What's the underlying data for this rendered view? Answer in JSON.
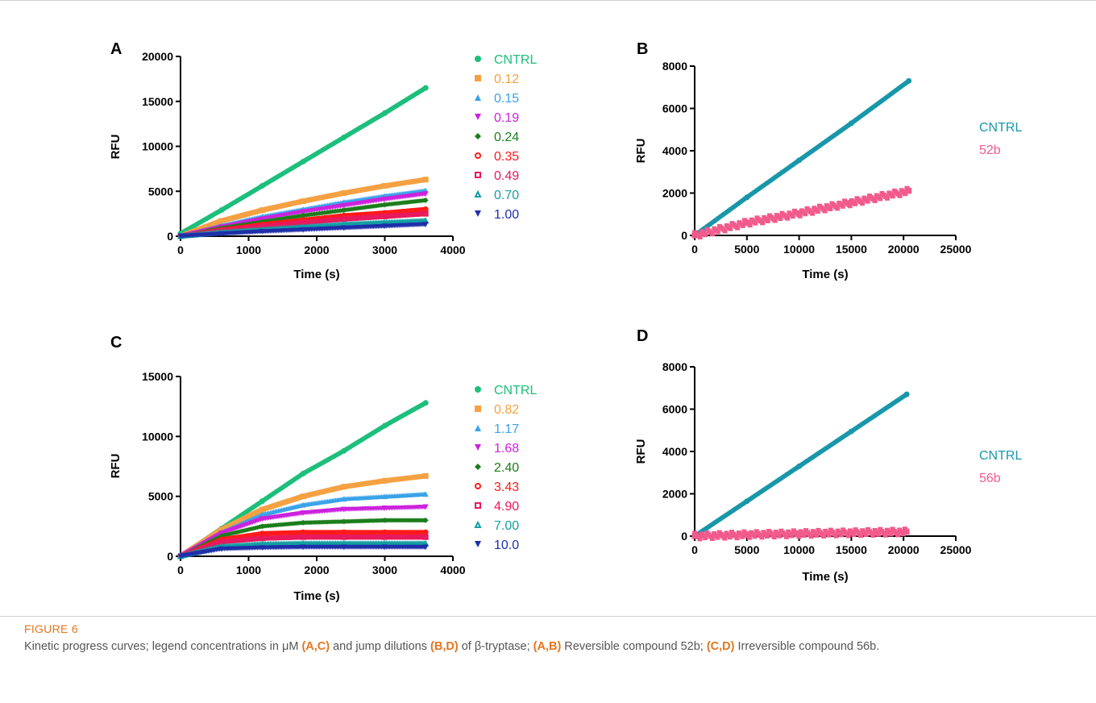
{
  "chart_data": [
    {
      "type": "scatter",
      "panel": "A",
      "xlabel": "Time (s)",
      "ylabel": "RFU",
      "xlim": [
        0,
        4000
      ],
      "ylim": [
        0,
        20000
      ],
      "xticks": [
        0,
        1000,
        2000,
        3000,
        4000
      ],
      "yticks": [
        0,
        5000,
        10000,
        15000,
        20000
      ],
      "legend_position": "right",
      "series": [
        {
          "name": "CNTRL",
          "color": "#1cbf7b",
          "marker": "circle",
          "x": [
            0,
            600,
            1200,
            1800,
            2400,
            3000,
            3600
          ],
          "y": [
            300,
            2900,
            5600,
            8300,
            11000,
            13700,
            16500
          ]
        },
        {
          "name": "0.12",
          "color": "#f5a142",
          "marker": "square",
          "x": [
            0,
            600,
            1200,
            1800,
            2400,
            3000,
            3600
          ],
          "y": [
            0,
            1700,
            2900,
            3900,
            4800,
            5600,
            6300
          ]
        },
        {
          "name": "0.15",
          "color": "#3aa3e8",
          "marker": "triangle-up",
          "x": [
            0,
            600,
            1200,
            1800,
            2400,
            3000,
            3600
          ],
          "y": [
            0,
            1200,
            2200,
            3000,
            3800,
            4500,
            5100
          ]
        },
        {
          "name": "0.19",
          "color": "#cc22dd",
          "marker": "triangle-down",
          "x": [
            0,
            600,
            1200,
            1800,
            2400,
            3000,
            3600
          ],
          "y": [
            0,
            1000,
            1900,
            2700,
            3400,
            4100,
            4700
          ]
        },
        {
          "name": "0.24",
          "color": "#1b7d1b",
          "marker": "diamond",
          "x": [
            0,
            600,
            1200,
            1800,
            2400,
            3000,
            3600
          ],
          "y": [
            0,
            900,
            1600,
            2300,
            2900,
            3500,
            4000
          ]
        },
        {
          "name": "0.35",
          "color": "#ff1a1a",
          "marker": "circle-open",
          "x": [
            0,
            600,
            1200,
            1800,
            2400,
            3000,
            3600
          ],
          "y": [
            0,
            700,
            1300,
            1800,
            2300,
            2600,
            3000
          ]
        },
        {
          "name": "0.49",
          "color": "#e8185c",
          "marker": "square-open",
          "x": [
            0,
            600,
            1200,
            1800,
            2400,
            3000,
            3600
          ],
          "y": [
            0,
            600,
            1100,
            1500,
            1900,
            2200,
            2500
          ]
        },
        {
          "name": "0.70",
          "color": "#149ea3",
          "marker": "triangle-open",
          "x": [
            0,
            600,
            1200,
            1800,
            2400,
            3000,
            3600
          ],
          "y": [
            0,
            400,
            700,
            1000,
            1300,
            1500,
            1700
          ]
        },
        {
          "name": "1.00",
          "color": "#1f2fa8",
          "marker": "triangle-down",
          "x": [
            0,
            600,
            1200,
            1800,
            2400,
            3000,
            3600
          ],
          "y": [
            0,
            250,
            500,
            700,
            900,
            1100,
            1300
          ]
        }
      ]
    },
    {
      "type": "scatter",
      "panel": "B",
      "xlabel": "Time (s)",
      "ylabel": "RFU",
      "xlim": [
        0,
        25000
      ],
      "ylim": [
        0,
        8000
      ],
      "xticks": [
        0,
        5000,
        10000,
        15000,
        20000,
        25000
      ],
      "yticks": [
        0,
        2000,
        4000,
        6000,
        8000
      ],
      "legend_position": "right",
      "series": [
        {
          "name": "CNTRL",
          "color": "#1897aa",
          "marker": "circle",
          "x": [
            0,
            5000,
            10000,
            15000,
            20500
          ],
          "y": [
            0,
            1800,
            3550,
            5300,
            7300
          ]
        },
        {
          "name": "52b",
          "color": "#f25a8c",
          "marker": "square",
          "x": [
            0,
            5000,
            10000,
            15000,
            20500
          ],
          "y": [
            0,
            600,
            1050,
            1550,
            2100
          ]
        }
      ]
    },
    {
      "type": "scatter",
      "panel": "C",
      "xlabel": "Time (s)",
      "ylabel": "RFU",
      "xlim": [
        0,
        4000
      ],
      "ylim": [
        0,
        15000
      ],
      "xticks": [
        0,
        1000,
        2000,
        3000,
        4000
      ],
      "yticks": [
        0,
        5000,
        10000,
        15000
      ],
      "legend_position": "right",
      "series": [
        {
          "name": "CNTRL",
          "color": "#1cbf7b",
          "marker": "circle",
          "x": [
            0,
            600,
            1200,
            1800,
            2400,
            3000,
            3600
          ],
          "y": [
            0,
            2300,
            4600,
            6900,
            8800,
            10900,
            12800
          ]
        },
        {
          "name": "0.82",
          "color": "#f5a142",
          "marker": "square",
          "x": [
            0,
            600,
            1200,
            1800,
            2400,
            3000,
            3600
          ],
          "y": [
            0,
            2200,
            3900,
            5000,
            5800,
            6300,
            6700
          ]
        },
        {
          "name": "1.17",
          "color": "#3aa3e8",
          "marker": "triangle-up",
          "x": [
            0,
            600,
            1200,
            1800,
            2400,
            3000,
            3600
          ],
          "y": [
            0,
            2000,
            3500,
            4300,
            4800,
            5000,
            5200
          ]
        },
        {
          "name": "1.68",
          "color": "#cc22dd",
          "marker": "triangle-down",
          "x": [
            0,
            600,
            1200,
            1800,
            2400,
            3000,
            3600
          ],
          "y": [
            0,
            1900,
            3100,
            3600,
            3900,
            4000,
            4100
          ]
        },
        {
          "name": "2.40",
          "color": "#1b7d1b",
          "marker": "diamond",
          "x": [
            0,
            600,
            1200,
            1800,
            2400,
            3000,
            3600
          ],
          "y": [
            0,
            1700,
            2500,
            2800,
            2900,
            3000,
            3000
          ]
        },
        {
          "name": "3.43",
          "color": "#ff1a1a",
          "marker": "circle-open",
          "x": [
            0,
            600,
            1200,
            1800,
            2400,
            3000,
            3600
          ],
          "y": [
            0,
            1400,
            1900,
            2000,
            2000,
            2000,
            2000
          ]
        },
        {
          "name": "4.90",
          "color": "#e8185c",
          "marker": "square-open",
          "x": [
            0,
            600,
            1200,
            1800,
            2400,
            3000,
            3600
          ],
          "y": [
            0,
            1200,
            1500,
            1600,
            1600,
            1600,
            1600
          ]
        },
        {
          "name": "7.00",
          "color": "#149ea3",
          "marker": "triangle-open",
          "x": [
            0,
            600,
            1200,
            1800,
            2400,
            3000,
            3600
          ],
          "y": [
            0,
            800,
            1000,
            1050,
            1050,
            1050,
            1050
          ]
        },
        {
          "name": "10.0",
          "color": "#1f2fa8",
          "marker": "triangle-down",
          "x": [
            0,
            600,
            1200,
            1800,
            2400,
            3000,
            3600
          ],
          "y": [
            0,
            600,
            700,
            750,
            750,
            750,
            750
          ]
        }
      ]
    },
    {
      "type": "scatter",
      "panel": "D",
      "xlabel": "Time (s)",
      "ylabel": "RFU",
      "xlim": [
        0,
        25000
      ],
      "ylim": [
        0,
        8000
      ],
      "xticks": [
        0,
        5000,
        10000,
        15000,
        20000,
        25000
      ],
      "yticks": [
        0,
        2000,
        4000,
        6000,
        8000
      ],
      "legend_position": "right",
      "series": [
        {
          "name": "CNTRL",
          "color": "#1897aa",
          "marker": "circle",
          "x": [
            0,
            5000,
            10000,
            15000,
            20300
          ],
          "y": [
            0,
            1650,
            3300,
            4950,
            6700
          ]
        },
        {
          "name": "56b",
          "color": "#f25a8c",
          "marker": "square",
          "x": [
            0,
            5000,
            10000,
            15000,
            20300
          ],
          "y": [
            0,
            70,
            120,
            160,
            200
          ]
        }
      ]
    }
  ],
  "caption": {
    "label": "FIGURE 6",
    "parts": [
      {
        "t": "Kinetic progress curves; legend concentrations in μM ",
        "b": false
      },
      {
        "t": "(A,C)",
        "b": true
      },
      {
        "t": " and jump dilutions ",
        "b": false
      },
      {
        "t": "(B,D)",
        "b": true
      },
      {
        "t": " of β-tryptase; ",
        "b": false
      },
      {
        "t": "(A,B)",
        "b": true
      },
      {
        "t": " Reversible compound 52b; ",
        "b": false
      },
      {
        "t": "(C,D)",
        "b": true
      },
      {
        "t": " Irreversible compound 56b.",
        "b": false
      }
    ]
  }
}
